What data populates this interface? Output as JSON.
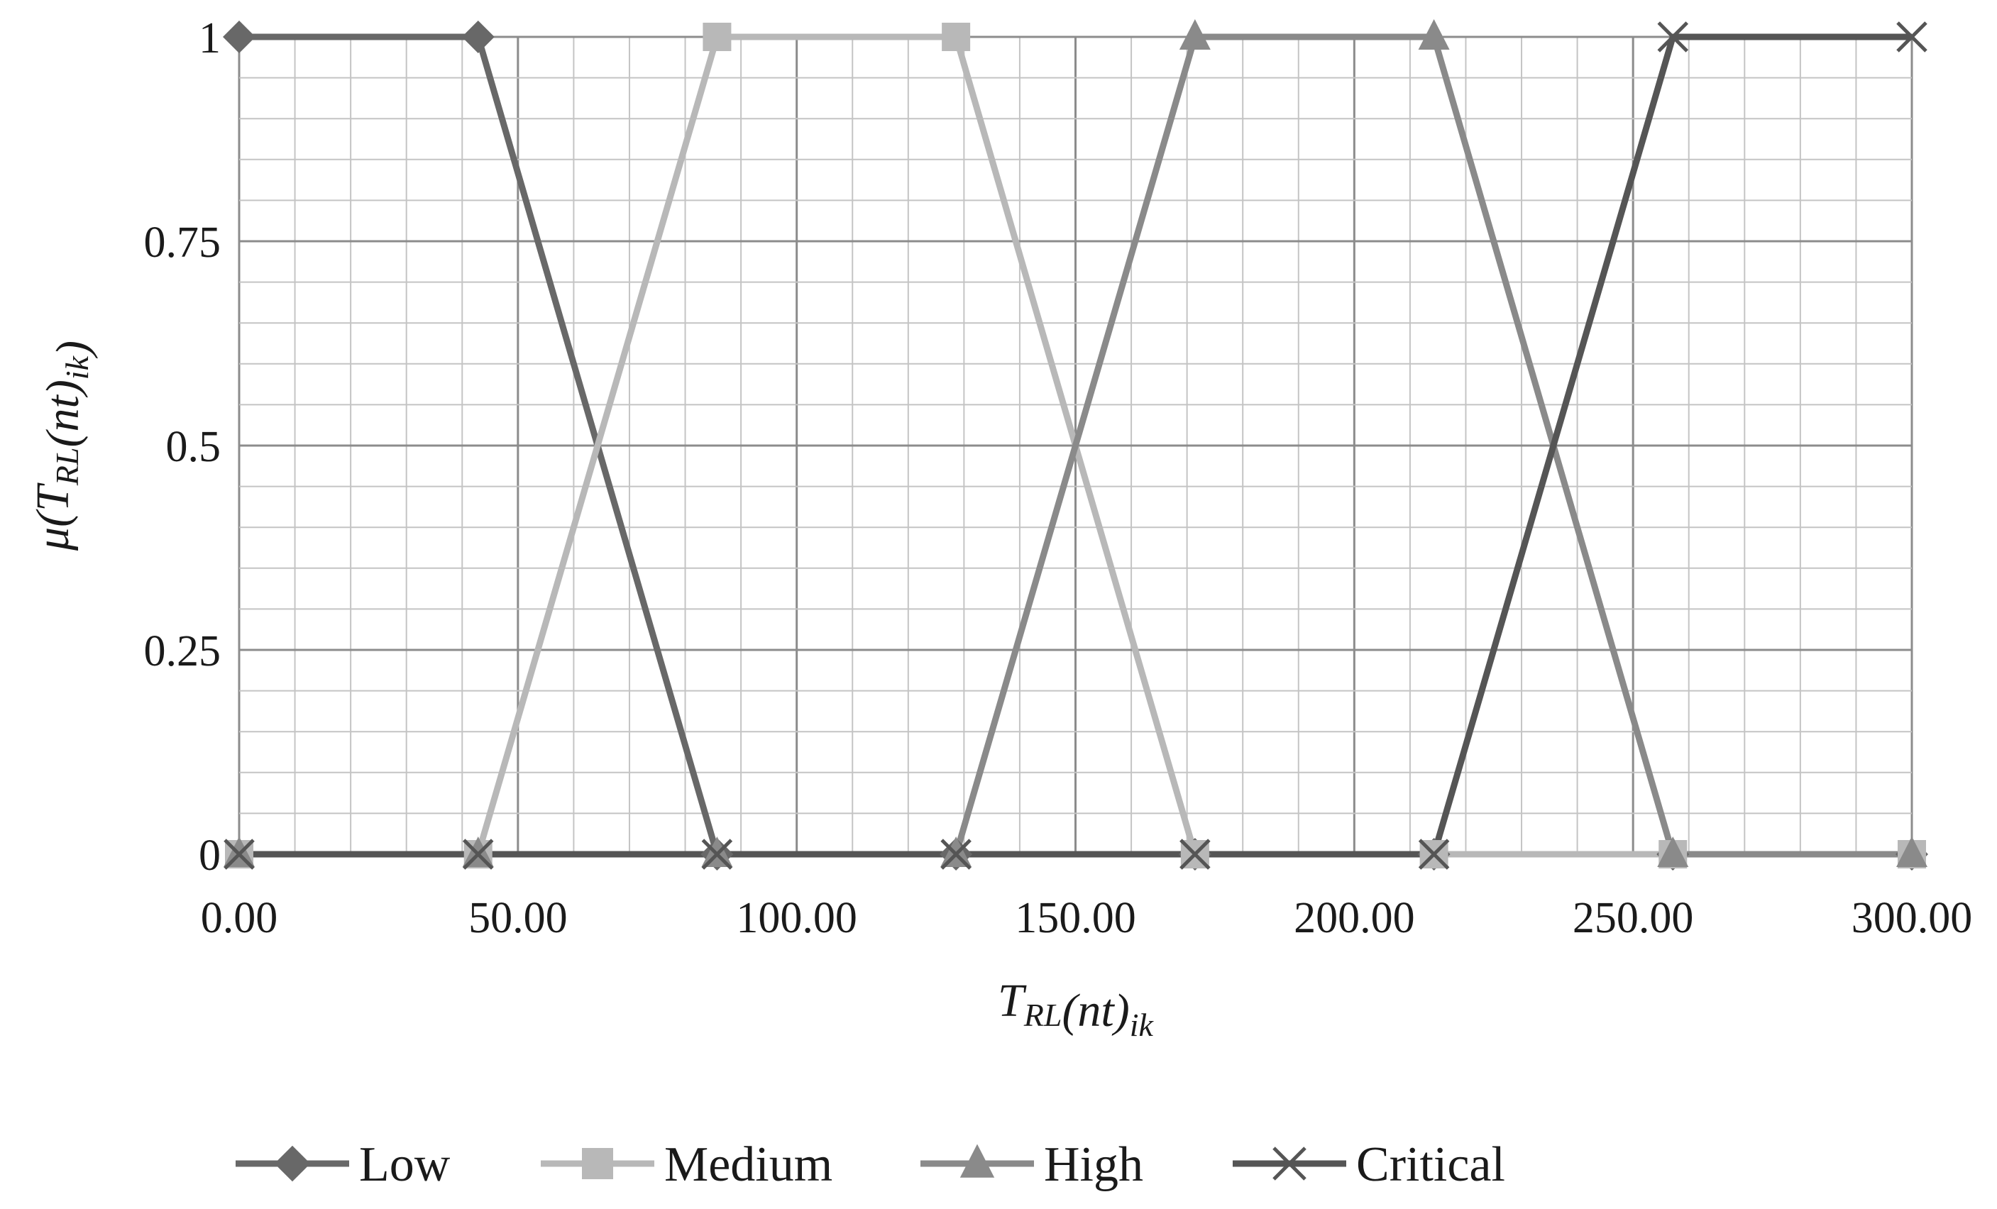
{
  "chart_data": {
    "type": "line",
    "xlabel": "T_RL(nt)_ik",
    "ylabel": "μ(T_RL(nt)_ik)",
    "xlim": [
      0,
      300
    ],
    "ylim": [
      0,
      1
    ],
    "xticks": [
      "0.00",
      "50.00",
      "100.00",
      "150.00",
      "200.00",
      "250.00",
      "300.00"
    ],
    "yticks": [
      "0",
      "0.25",
      "0.5",
      "0.75",
      "1"
    ],
    "grid": true,
    "legend_position": "bottom",
    "series": [
      {
        "name": "Low",
        "marker": "diamond",
        "color": "#686868",
        "x": [
          0,
          42.86,
          85.71,
          128.57,
          171.43,
          214.29,
          257.14,
          300
        ],
        "y": [
          1,
          1,
          0,
          0,
          0,
          0,
          0,
          0
        ]
      },
      {
        "name": "Medium",
        "marker": "square",
        "color": "#b8b8b8",
        "x": [
          0,
          42.86,
          85.71,
          128.57,
          171.43,
          214.29,
          257.14,
          300
        ],
        "y": [
          0,
          0,
          1,
          1,
          0,
          0,
          0,
          0
        ]
      },
      {
        "name": "High",
        "marker": "triangle",
        "color": "#8a8a8a",
        "x": [
          0,
          42.86,
          85.71,
          128.57,
          171.43,
          214.29,
          257.14,
          300
        ],
        "y": [
          0,
          0,
          0,
          0,
          1,
          1,
          0,
          0
        ]
      },
      {
        "name": "Critical",
        "marker": "x",
        "color": "#555555",
        "x": [
          0,
          42.86,
          85.71,
          128.57,
          171.43,
          214.29,
          257.14,
          300
        ],
        "y": [
          0,
          0,
          0,
          0,
          0,
          0,
          1,
          1
        ]
      }
    ]
  }
}
